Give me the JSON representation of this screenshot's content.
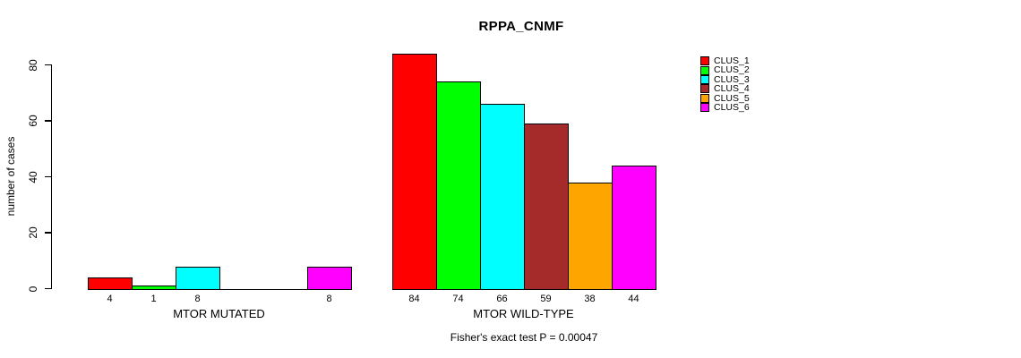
{
  "chart_data": {
    "type": "bar",
    "title": "RPPA_CNMF",
    "ylabel": "number of cases",
    "footer": "Fisher's exact test P = 0.00047",
    "yticks": [
      0,
      20,
      40,
      60,
      80
    ],
    "ylim": [
      0,
      84
    ],
    "grid": false,
    "legend_position": "right",
    "bar_outline_color": "#000000",
    "clusters": [
      {
        "name": "CLUS_1",
        "color": "#FF0000"
      },
      {
        "name": "CLUS_2",
        "color": "#00FF00"
      },
      {
        "name": "CLUS_3",
        "color": "#00FFFF"
      },
      {
        "name": "CLUS_4",
        "color": "#A52A2A"
      },
      {
        "name": "CLUS_5",
        "color": "#FFA500"
      },
      {
        "name": "CLUS_6",
        "color": "#FF00FF"
      }
    ],
    "groups": [
      {
        "label": "MTOR MUTATED",
        "values": [
          4,
          1,
          8,
          0,
          0,
          8
        ]
      },
      {
        "label": "MTOR WILD-TYPE",
        "values": [
          84,
          74,
          66,
          59,
          38,
          44
        ]
      }
    ]
  }
}
